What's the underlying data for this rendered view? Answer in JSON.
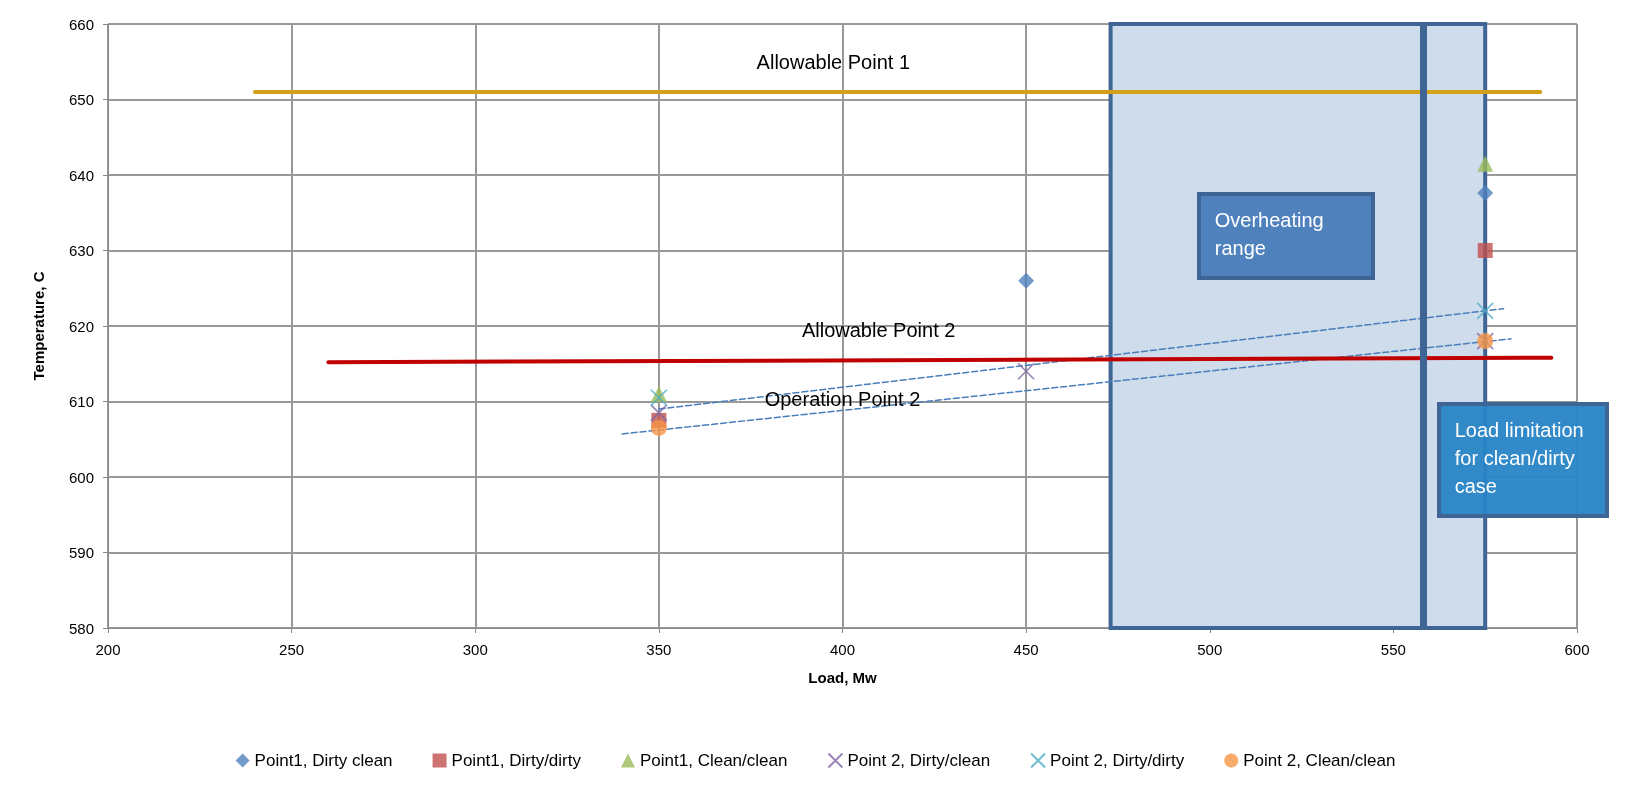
{
  "chart_data": {
    "type": "scatter",
    "xlabel": "Load, Mw",
    "ylabel": "Temperature, C",
    "xlim": [
      200,
      600
    ],
    "xticks": [
      200,
      250,
      300,
      350,
      400,
      450,
      500,
      550,
      600
    ],
    "ylim": [
      580,
      660
    ],
    "yticks": [
      580,
      590,
      600,
      610,
      620,
      630,
      640,
      650,
      660
    ],
    "grid": true,
    "legend": "bottom",
    "series": [
      {
        "name": "Point1, Dirty clean",
        "color": "#4f81bd",
        "marker": "diamond",
        "x": [
          450,
          575
        ],
        "values": [
          626,
          637.6
        ]
      },
      {
        "name": "Point1, Dirty/dirty",
        "color": "#c0504d",
        "marker": "square",
        "x": [
          350,
          575
        ],
        "values": [
          607.5,
          630
        ]
      },
      {
        "name": "Point1, Clean/clean",
        "color": "#9bbb59",
        "marker": "triangle",
        "x": [
          350,
          575
        ],
        "values": [
          611,
          641.5
        ]
      },
      {
        "name": "Point 2, Dirty/clean",
        "color": "#8064a2",
        "marker": "cross",
        "x": [
          350,
          450,
          575
        ],
        "values": [
          608.5,
          614,
          618
        ]
      },
      {
        "name": "Point 2, Dirty/dirty",
        "color": "#4bacc6",
        "marker": "cross",
        "x": [
          350,
          575
        ],
        "values": [
          610.5,
          622
        ]
      },
      {
        "name": "Point 2, Clean/clean",
        "color": "#f79646",
        "marker": "circle",
        "x": [
          350,
          575
        ],
        "values": [
          606.5,
          618
        ]
      },
      {
        "type": "line",
        "color": "#4a7ebb",
        "line_style": "dashed",
        "marker": "none",
        "x": [
          350,
          580
        ],
        "values": [
          609,
          622.3
        ]
      },
      {
        "type": "line",
        "color": "#4a7ebb",
        "line_style": "dashed",
        "marker": "none",
        "x": [
          340,
          582
        ],
        "values": [
          605.7,
          618.3
        ]
      },
      {
        "type": "line",
        "name": "Allowable Point 1",
        "color": "#d4a017",
        "line_style": "solid",
        "marker": "none",
        "x": [
          240,
          590
        ],
        "values": [
          651,
          651
        ]
      },
      {
        "type": "line",
        "name": "Allowable Point 2",
        "color": "#c00000",
        "line_style": "solid",
        "marker": "none",
        "x": [
          260,
          593
        ],
        "values": [
          615.2,
          615.8
        ]
      }
    ],
    "bands": [
      {
        "axis": "x",
        "from": 473,
        "to": 575,
        "label": "Overheating range",
        "color": "#cfdcec"
      }
    ],
    "ref_lines": [
      {
        "axis": "x",
        "value": 558,
        "label": "Load limitation for clean/dirty case",
        "color": "#3f6595"
      }
    ],
    "annotations": [
      "Operation Point 2"
    ]
  }
}
